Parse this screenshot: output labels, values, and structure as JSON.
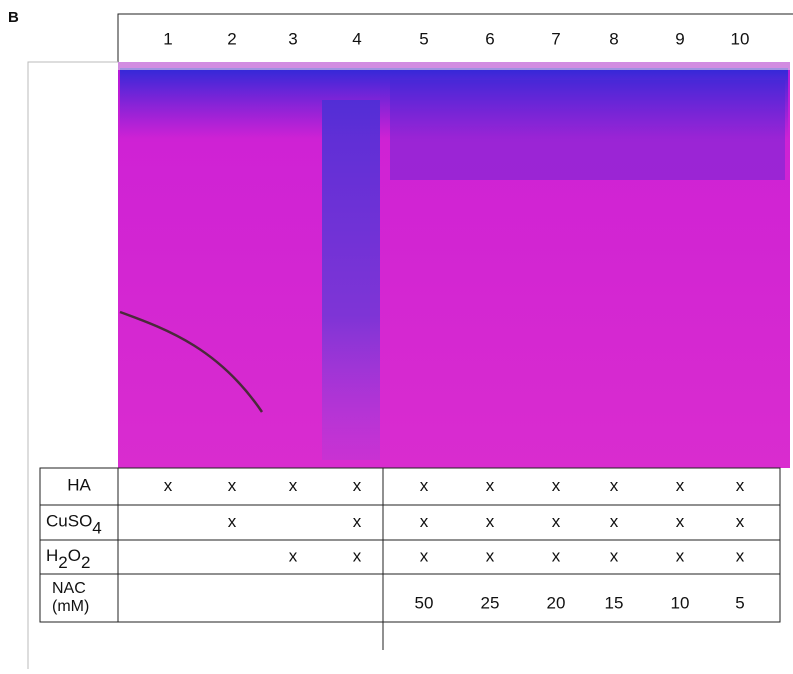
{
  "panel_label": "B",
  "lanes": [
    "1",
    "2",
    "3",
    "4",
    "5",
    "6",
    "7",
    "8",
    "9",
    "10"
  ],
  "table": {
    "rows": [
      {
        "label": [
          [
            "HA",
            false
          ]
        ],
        "cells": [
          "x",
          "x",
          "x",
          "x",
          "x",
          "x",
          "x",
          "x",
          "x",
          "x"
        ]
      },
      {
        "label": [
          [
            "CuSO",
            false
          ],
          [
            "4",
            true
          ]
        ],
        "cells": [
          null,
          "x",
          null,
          "x",
          "x",
          "x",
          "x",
          "x",
          "x",
          "x"
        ]
      },
      {
        "label": [
          [
            "H",
            false
          ],
          [
            "2",
            true
          ],
          [
            "O",
            false
          ],
          [
            "2",
            true
          ]
        ],
        "cells": [
          null,
          null,
          "x",
          "x",
          "x",
          "x",
          "x",
          "x",
          "x",
          "x"
        ]
      },
      {
        "label": [
          [
            "NAC",
            false
          ],
          [
            "(mM)",
            false
          ]
        ],
        "cells": [
          null,
          null,
          null,
          null,
          50,
          25,
          20,
          15,
          10,
          5
        ]
      }
    ]
  }
}
